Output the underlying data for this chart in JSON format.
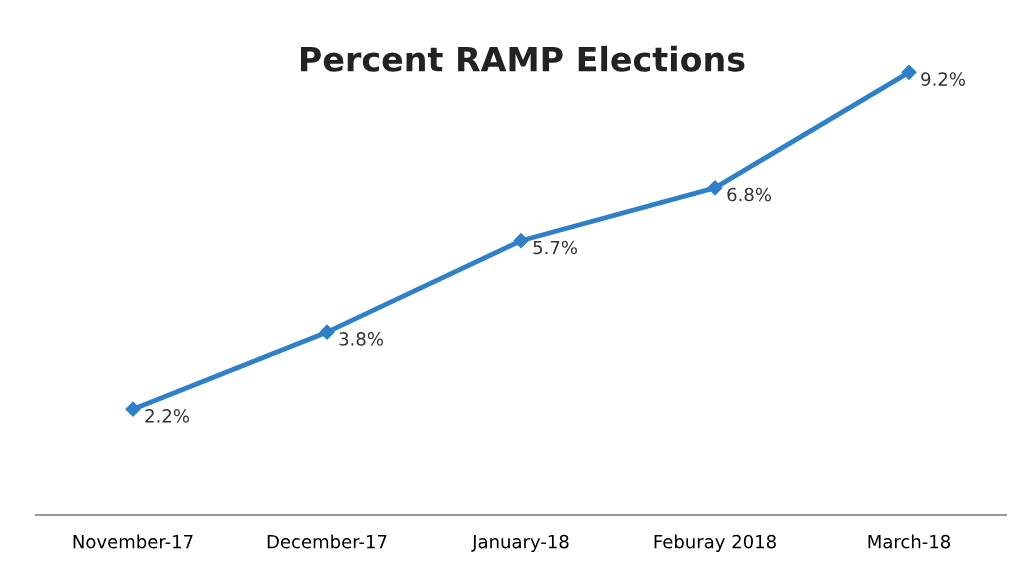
{
  "chart_data": {
    "type": "line",
    "title": "Percent RAMP Elections",
    "categories": [
      "November-17",
      "December-17",
      "January-18",
      "Feburay 2018",
      "March-18"
    ],
    "series": [
      {
        "color": "#2f80c6",
        "values": [
          2.2,
          3.8,
          5.7,
          6.8,
          9.2
        ],
        "value_labels": [
          "2.2%",
          "3.8%",
          "5.7%",
          "6.8%",
          "9.2%"
        ]
      }
    ],
    "marker": "diamond",
    "line_style": "solid",
    "grid": false,
    "legend": false,
    "tick_labels": "x"
  }
}
